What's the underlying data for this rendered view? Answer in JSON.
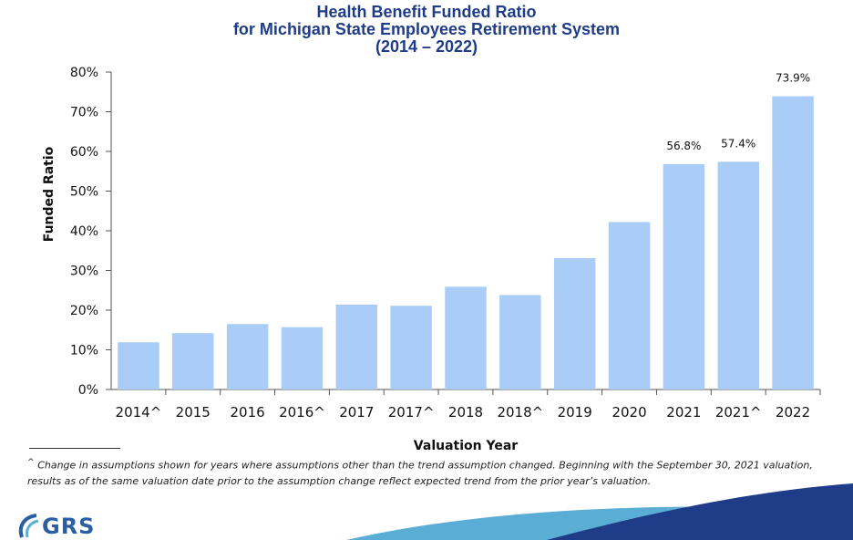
{
  "title_lines": [
    "Health Benefit Funded Ratio",
    "for Michigan State Employees Retirement System",
    "(2014 – 2022)"
  ],
  "footnote": {
    "marker": "^",
    "text": "Change in assumptions shown for years where assumptions other than the trend assumption changed. Beginning with the September 30, 2021 valuation, results as of the same valuation date prior to the assumption change reflect expected trend from the prior year’s valuation."
  },
  "logo": {
    "text": "GRS"
  },
  "colors": {
    "bar": "#a9cdf7",
    "title": "#1f3c88",
    "axis": "#555555",
    "swoosh_light": "#5aaed6",
    "swoosh_dark": "#1f3c88"
  },
  "chart_data": {
    "type": "bar",
    "categories": [
      "2014^",
      "2015",
      "2016",
      "2016^",
      "2017",
      "2017^",
      "2018",
      "2018^",
      "2019",
      "2020",
      "2021",
      "2021^",
      "2022"
    ],
    "values": [
      11.9,
      14.2,
      16.5,
      15.7,
      21.4,
      21.1,
      25.9,
      23.8,
      33.1,
      42.2,
      56.8,
      57.4,
      73.9
    ],
    "data_labels": [
      "",
      "",
      "",
      "",
      "",
      "",
      "",
      "",
      "",
      "",
      "56.8%",
      "57.4%",
      "73.9%"
    ],
    "xlabel": "Valuation Year",
    "ylabel": "Funded Ratio",
    "ylim": [
      0,
      80
    ],
    "yticks": [
      0,
      10,
      20,
      30,
      40,
      50,
      60,
      70,
      80
    ],
    "ytick_labels": [
      "0%",
      "10%",
      "20%",
      "30%",
      "40%",
      "50%",
      "60%",
      "70%",
      "80%"
    ],
    "grid": false,
    "legend": "none"
  }
}
